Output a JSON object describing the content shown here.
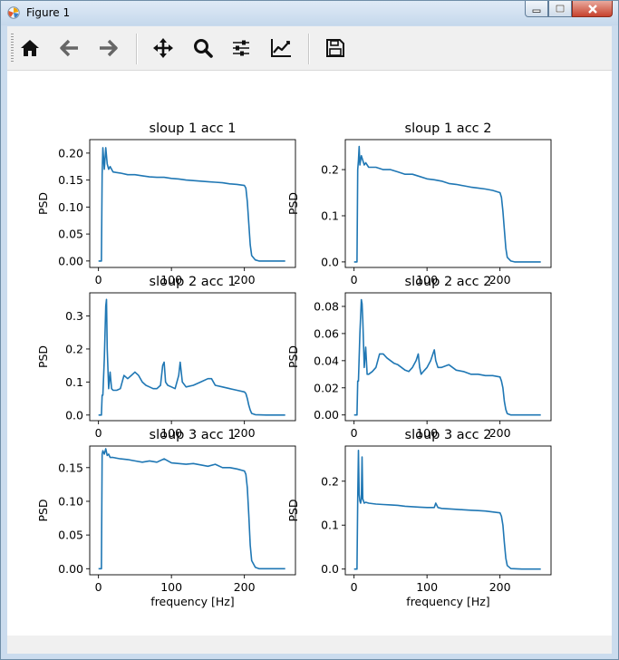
{
  "window": {
    "title": "Figure 1"
  },
  "toolbar": {
    "tools": [
      "home-icon",
      "back-arrow-icon",
      "forward-arrow-icon",
      "pan-icon",
      "zoom-icon",
      "subplots-config-icon",
      "edit-axes-icon",
      "save-icon"
    ]
  },
  "colors": {
    "line": "#1f77b4"
  },
  "chart_data": [
    {
      "type": "line",
      "title": "sloup 1 acc 1",
      "xlabel": "",
      "ylabel": "PSD",
      "xlim": [
        -12,
        270
      ],
      "ylim": [
        -0.012,
        0.225
      ],
      "xticks": [
        0,
        100,
        200
      ],
      "xtick_labels": [
        "0",
        "100",
        "200"
      ],
      "yticks": [
        0.0,
        0.05,
        0.1,
        0.15,
        0.2
      ],
      "ytick_labels": [
        "0.00",
        "0.05",
        "0.10",
        "0.15",
        "0.20"
      ],
      "series": [
        {
          "x": [
            0,
            2,
            4,
            5,
            6,
            7,
            8,
            10,
            12,
            14,
            16,
            20,
            30,
            40,
            50,
            60,
            70,
            80,
            90,
            100,
            110,
            120,
            130,
            140,
            150,
            160,
            170,
            180,
            190,
            200,
            202,
            204,
            206,
            208,
            210,
            215,
            220,
            230,
            240,
            256
          ],
          "y": [
            0,
            0,
            0,
            0.16,
            0.21,
            0.19,
            0.17,
            0.21,
            0.18,
            0.17,
            0.175,
            0.165,
            0.163,
            0.16,
            0.16,
            0.158,
            0.156,
            0.155,
            0.155,
            0.153,
            0.152,
            0.15,
            0.149,
            0.148,
            0.147,
            0.146,
            0.145,
            0.143,
            0.142,
            0.14,
            0.135,
            0.11,
            0.07,
            0.03,
            0.01,
            0.002,
            0,
            0,
            0,
            0
          ]
        }
      ]
    },
    {
      "type": "line",
      "title": "sloup 1 acc 2",
      "xlabel": "",
      "ylabel": "PSD",
      "xlim": [
        -12,
        270
      ],
      "ylim": [
        -0.012,
        0.265
      ],
      "xticks": [
        0,
        100,
        200
      ],
      "xtick_labels": [
        "0",
        "100",
        "200"
      ],
      "yticks": [
        0.0,
        0.1,
        0.2
      ],
      "ytick_labels": [
        "0.0",
        "0.1",
        "0.2"
      ],
      "series": [
        {
          "x": [
            0,
            2,
            4,
            5,
            6,
            7,
            8,
            10,
            12,
            14,
            16,
            20,
            30,
            40,
            50,
            60,
            70,
            80,
            90,
            100,
            110,
            120,
            130,
            140,
            150,
            160,
            170,
            180,
            190,
            200,
            202,
            204,
            206,
            208,
            210,
            215,
            220,
            230,
            240,
            256
          ],
          "y": [
            0,
            0,
            0,
            0.2,
            0.22,
            0.25,
            0.21,
            0.23,
            0.22,
            0.21,
            0.215,
            0.205,
            0.205,
            0.2,
            0.2,
            0.195,
            0.19,
            0.19,
            0.185,
            0.18,
            0.178,
            0.175,
            0.17,
            0.168,
            0.165,
            0.162,
            0.16,
            0.158,
            0.155,
            0.15,
            0.14,
            0.11,
            0.07,
            0.03,
            0.01,
            0.002,
            0,
            0,
            0,
            0
          ]
        }
      ]
    },
    {
      "type": "line",
      "title": "sloup 2 acc 1",
      "xlabel": "",
      "ylabel": "PSD",
      "xlim": [
        -12,
        270
      ],
      "ylim": [
        -0.017,
        0.37
      ],
      "xticks": [
        0,
        100,
        200
      ],
      "xtick_labels": [
        "0",
        "100",
        "200"
      ],
      "yticks": [
        0.0,
        0.1,
        0.2,
        0.3
      ],
      "ytick_labels": [
        "0.0",
        "0.1",
        "0.2",
        "0.3"
      ],
      "series": [
        {
          "x": [
            0,
            2,
            4,
            5,
            6,
            8,
            10,
            11,
            12,
            14,
            16,
            18,
            20,
            25,
            30,
            35,
            40,
            45,
            50,
            55,
            60,
            65,
            70,
            75,
            80,
            85,
            88,
            90,
            92,
            95,
            100,
            105,
            110,
            112,
            115,
            120,
            130,
            140,
            150,
            155,
            160,
            170,
            180,
            190,
            200,
            202,
            204,
            206,
            208,
            210,
            215,
            230,
            256
          ],
          "y": [
            0,
            0,
            0,
            0.06,
            0.06,
            0.17,
            0.33,
            0.35,
            0.2,
            0.08,
            0.13,
            0.08,
            0.075,
            0.075,
            0.08,
            0.12,
            0.11,
            0.12,
            0.13,
            0.12,
            0.1,
            0.09,
            0.085,
            0.08,
            0.08,
            0.09,
            0.15,
            0.16,
            0.1,
            0.09,
            0.085,
            0.08,
            0.12,
            0.16,
            0.1,
            0.085,
            0.09,
            0.1,
            0.11,
            0.11,
            0.09,
            0.085,
            0.08,
            0.075,
            0.07,
            0.065,
            0.05,
            0.03,
            0.015,
            0.005,
            0.001,
            0,
            0
          ]
        }
      ]
    },
    {
      "type": "line",
      "title": "sloup 2 acc 2",
      "xlabel": "",
      "ylabel": "PSD",
      "xlim": [
        -12,
        270
      ],
      "ylim": [
        -0.0042,
        0.09
      ],
      "xticks": [
        0,
        100,
        200
      ],
      "xtick_labels": [
        "0",
        "100",
        "200"
      ],
      "yticks": [
        0.0,
        0.02,
        0.04,
        0.06,
        0.08
      ],
      "ytick_labels": [
        "0.00",
        "0.02",
        "0.04",
        "0.06",
        "0.08"
      ],
      "series": [
        {
          "x": [
            0,
            2,
            4,
            5,
            6,
            8,
            10,
            11,
            12,
            14,
            16,
            18,
            20,
            25,
            30,
            35,
            40,
            45,
            50,
            55,
            60,
            65,
            70,
            75,
            80,
            85,
            88,
            90,
            92,
            95,
            100,
            105,
            110,
            112,
            115,
            120,
            130,
            140,
            150,
            155,
            160,
            170,
            180,
            190,
            200,
            202,
            204,
            206,
            208,
            210,
            215,
            230,
            256
          ],
          "y": [
            0,
            0,
            0,
            0.025,
            0.025,
            0.06,
            0.085,
            0.082,
            0.07,
            0.035,
            0.05,
            0.03,
            0.03,
            0.032,
            0.035,
            0.045,
            0.045,
            0.042,
            0.04,
            0.038,
            0.037,
            0.035,
            0.033,
            0.032,
            0.035,
            0.04,
            0.045,
            0.035,
            0.03,
            0.032,
            0.035,
            0.04,
            0.048,
            0.04,
            0.035,
            0.035,
            0.037,
            0.033,
            0.032,
            0.031,
            0.03,
            0.03,
            0.029,
            0.029,
            0.028,
            0.025,
            0.02,
            0.01,
            0.004,
            0.001,
            0,
            0,
            0
          ]
        }
      ]
    },
    {
      "type": "line",
      "title": "sloup 3 acc 1",
      "xlabel": "frequency [Hz]",
      "ylabel": "PSD",
      "xlim": [
        -12,
        270
      ],
      "ylim": [
        -0.009,
        0.182
      ],
      "xticks": [
        0,
        100,
        200
      ],
      "xtick_labels": [
        "0",
        "100",
        "200"
      ],
      "yticks": [
        0.0,
        0.05,
        0.1,
        0.15
      ],
      "ytick_labels": [
        "0.00",
        "0.05",
        "0.10",
        "0.15"
      ],
      "series": [
        {
          "x": [
            0,
            2,
            4,
            5,
            6,
            8,
            10,
            12,
            14,
            16,
            20,
            30,
            40,
            50,
            60,
            70,
            80,
            90,
            100,
            110,
            120,
            130,
            140,
            150,
            160,
            170,
            180,
            190,
            200,
            202,
            204,
            206,
            208,
            210,
            215,
            220,
            230,
            240,
            256
          ],
          "y": [
            0,
            0,
            0,
            0.17,
            0.175,
            0.17,
            0.178,
            0.168,
            0.17,
            0.165,
            0.165,
            0.163,
            0.162,
            0.16,
            0.158,
            0.16,
            0.158,
            0.163,
            0.157,
            0.156,
            0.155,
            0.156,
            0.154,
            0.152,
            0.155,
            0.15,
            0.15,
            0.148,
            0.145,
            0.14,
            0.12,
            0.08,
            0.035,
            0.012,
            0.002,
            0,
            0,
            0,
            0
          ]
        }
      ]
    },
    {
      "type": "line",
      "title": "sloup 3 acc 2",
      "xlabel": "frequency [Hz]",
      "ylabel": "PSD",
      "xlim": [
        -12,
        270
      ],
      "ylim": [
        -0.013,
        0.28
      ],
      "xticks": [
        0,
        100,
        200
      ],
      "xtick_labels": [
        "0",
        "100",
        "200"
      ],
      "yticks": [
        0.0,
        0.1,
        0.2
      ],
      "ytick_labels": [
        "0.0",
        "0.1",
        "0.2"
      ],
      "series": [
        {
          "x": [
            0,
            2,
            4,
            5,
            6,
            7,
            8,
            9,
            10,
            11,
            12,
            13,
            14,
            16,
            20,
            30,
            40,
            50,
            60,
            70,
            80,
            90,
            100,
            110,
            112,
            115,
            120,
            130,
            140,
            150,
            160,
            170,
            180,
            190,
            200,
            202,
            204,
            206,
            208,
            210,
            215,
            230,
            256
          ],
          "y": [
            0,
            0,
            0,
            0.16,
            0.27,
            0.17,
            0.155,
            0.15,
            0.16,
            0.255,
            0.16,
            0.155,
            0.15,
            0.152,
            0.15,
            0.148,
            0.147,
            0.146,
            0.145,
            0.143,
            0.142,
            0.141,
            0.14,
            0.14,
            0.15,
            0.14,
            0.138,
            0.137,
            0.136,
            0.135,
            0.134,
            0.133,
            0.132,
            0.13,
            0.128,
            0.12,
            0.1,
            0.06,
            0.025,
            0.008,
            0.001,
            0,
            0
          ]
        }
      ]
    }
  ]
}
